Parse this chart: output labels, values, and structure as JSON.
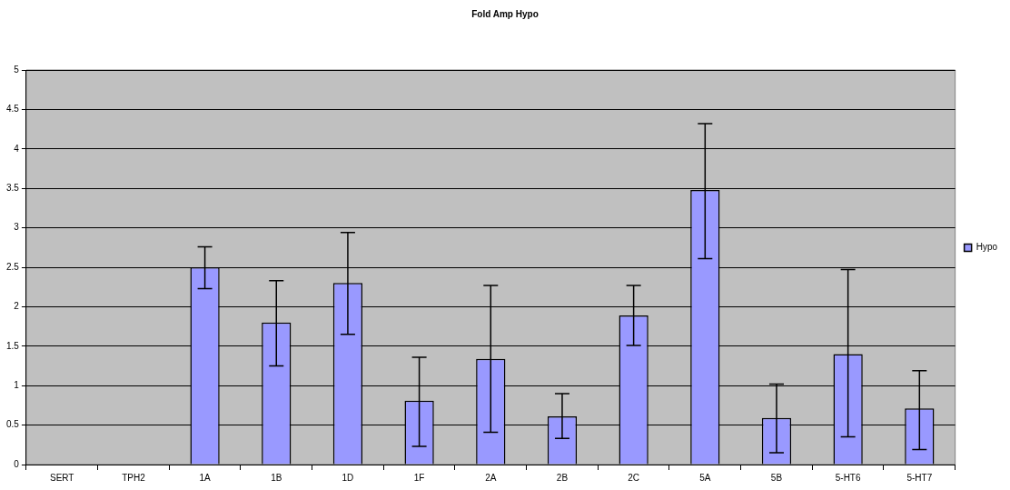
{
  "chart_data": {
    "type": "bar",
    "title": "Fold Amp Hypo",
    "categories": [
      "SERT",
      "TPH2",
      "1A",
      "1B",
      "1D",
      "1F",
      "2A",
      "2B",
      "2C",
      "5A",
      "5B",
      "5-HT6",
      "5-HT7"
    ],
    "series": [
      {
        "name": "Hypo",
        "color": "#9999ff",
        "values": [
          null,
          null,
          2.5,
          1.8,
          2.3,
          0.81,
          1.34,
          0.61,
          1.89,
          3.48,
          0.59,
          1.4,
          0.71
        ],
        "errors": [
          null,
          null,
          [
            2.23,
            2.76
          ],
          [
            1.25,
            2.33
          ],
          [
            1.65,
            2.94
          ],
          [
            0.23,
            1.36
          ],
          [
            0.41,
            2.27
          ],
          [
            0.33,
            0.9
          ],
          [
            1.51,
            2.27
          ],
          [
            2.61,
            4.32
          ],
          [
            0.15,
            1.02
          ],
          [
            0.35,
            2.47
          ],
          [
            0.19,
            1.19
          ]
        ]
      }
    ],
    "ylim": [
      0,
      5
    ],
    "yticks": [
      0,
      0.5,
      1,
      1.5,
      2,
      2.5,
      3,
      3.5,
      4,
      4.5,
      5
    ],
    "grid": "y",
    "legend": "right"
  }
}
